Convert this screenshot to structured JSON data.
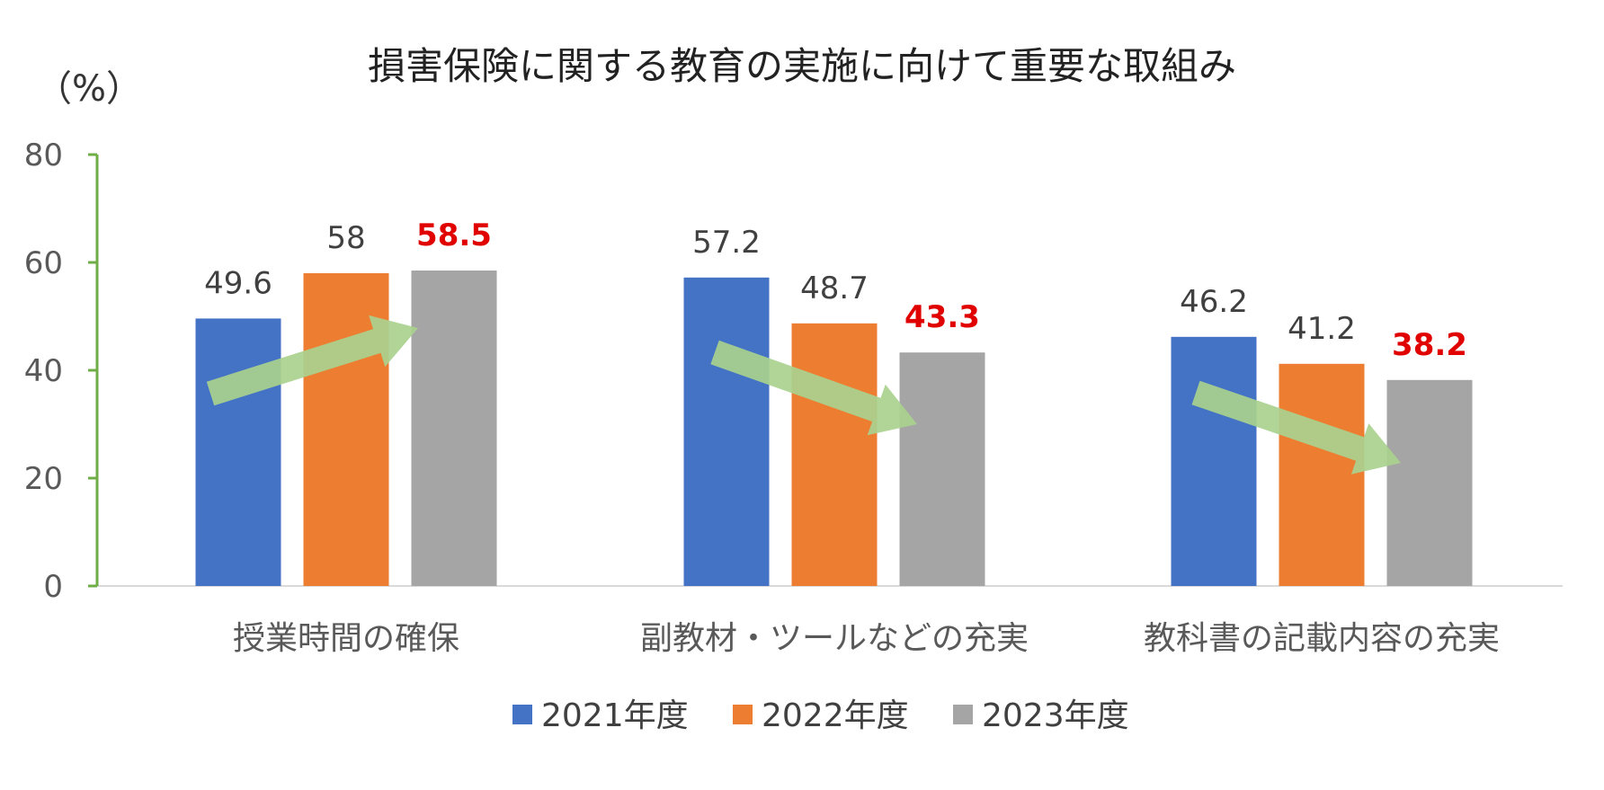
{
  "chart_data": {
    "type": "bar",
    "title": "損害保険に関する教育の実施に向けて重要な取組み",
    "ylabel": "（%）",
    "categories": [
      "授業時間の確保",
      "副教材・ツールなどの充実",
      "教科書の記載内容の充実"
    ],
    "series": [
      {
        "name": "2021年度",
        "color": "#4472C4",
        "values": [
          49.6,
          57.2,
          46.2
        ]
      },
      {
        "name": "2022年度",
        "color": "#ED7D31",
        "values": [
          58,
          48.7,
          41.2
        ]
      },
      {
        "name": "2023年度",
        "color": "#A5A5A5",
        "values": [
          58.5,
          43.3,
          38.2
        ]
      }
    ],
    "data_labels": [
      [
        "49.6",
        "57.2",
        "46.2"
      ],
      [
        "58",
        "48.7",
        "41.2"
      ],
      [
        "58.5",
        "43.3",
        "38.2"
      ]
    ],
    "highlight_series": 2,
    "highlight_color": "#E00000",
    "ylim": [
      0,
      80
    ],
    "yticks": [
      0,
      20,
      40,
      60,
      80
    ],
    "grid": false,
    "legend_position": "bottom",
    "axis_color": "#70AD47",
    "trend_arrows": {
      "color": "#A9D18E",
      "directions": [
        "up",
        "down",
        "down"
      ]
    }
  }
}
